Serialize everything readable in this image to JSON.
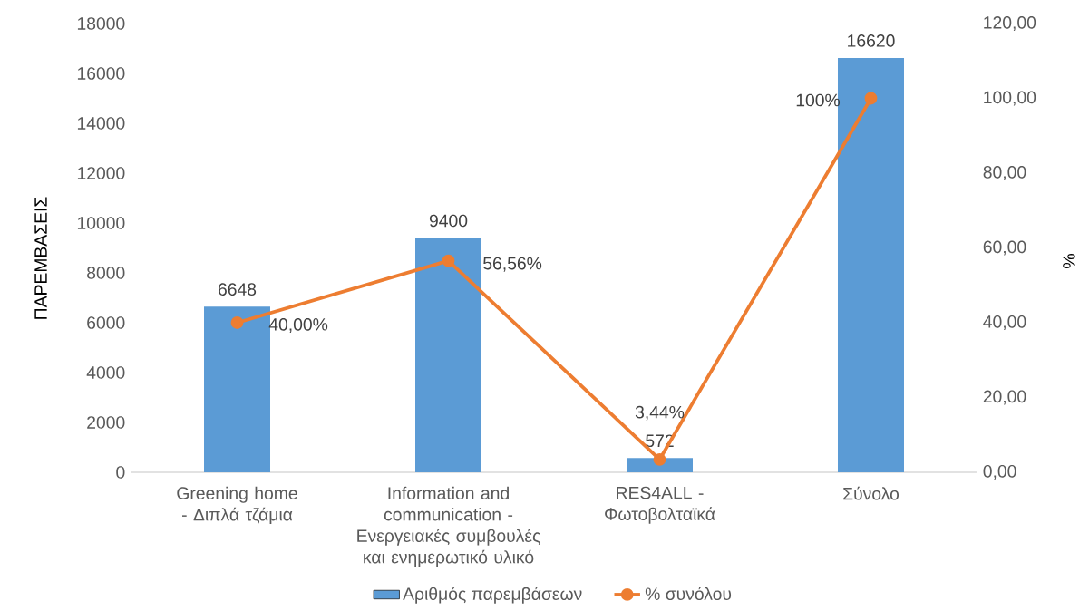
{
  "chart_data": {
    "type": "bar",
    "categories": [
      "Greening home - Διπλά τζάμια",
      "Information and communication - Ενεργειακές συμβουλές και ενημερωτικό υλικό",
      "RES4ALL - Φωτοβολταϊκά",
      "Σύνολο"
    ],
    "ylabel": "ΠΑΡΕΜΒΑΣΕΙΣ",
    "y2label": "%",
    "ylim": [
      0,
      18000
    ],
    "yticks": [
      0,
      2000,
      4000,
      6000,
      8000,
      10000,
      12000,
      14000,
      16000,
      18000
    ],
    "y2lim": [
      0,
      120
    ],
    "y2ticks": [
      {
        "value": 0,
        "label": "0,00"
      },
      {
        "value": 20,
        "label": "20,00"
      },
      {
        "value": 40,
        "label": "40,00"
      },
      {
        "value": 60,
        "label": "60,00"
      },
      {
        "value": 80,
        "label": "80,00"
      },
      {
        "value": 100,
        "label": "100,00"
      },
      {
        "value": 120,
        "label": "120,00"
      }
    ],
    "series": [
      {
        "name": "Αριθμός παρεμβάσεων",
        "color": "#5b9bd5",
        "values": [
          6648,
          9400,
          572,
          16620
        ],
        "value_labels": [
          "6648",
          "9400",
          "572",
          "16620"
        ]
      },
      {
        "name": "% συνόλου",
        "type": "line",
        "axis": "y2",
        "color": "#ed7d31",
        "marker": "circle",
        "line_style": "solid",
        "values": [
          40,
          56.56,
          3.44,
          100
        ],
        "value_labels": [
          "40,00%",
          "56,56%",
          "3,44%",
          "100%"
        ]
      }
    ],
    "legend": "bottom"
  }
}
